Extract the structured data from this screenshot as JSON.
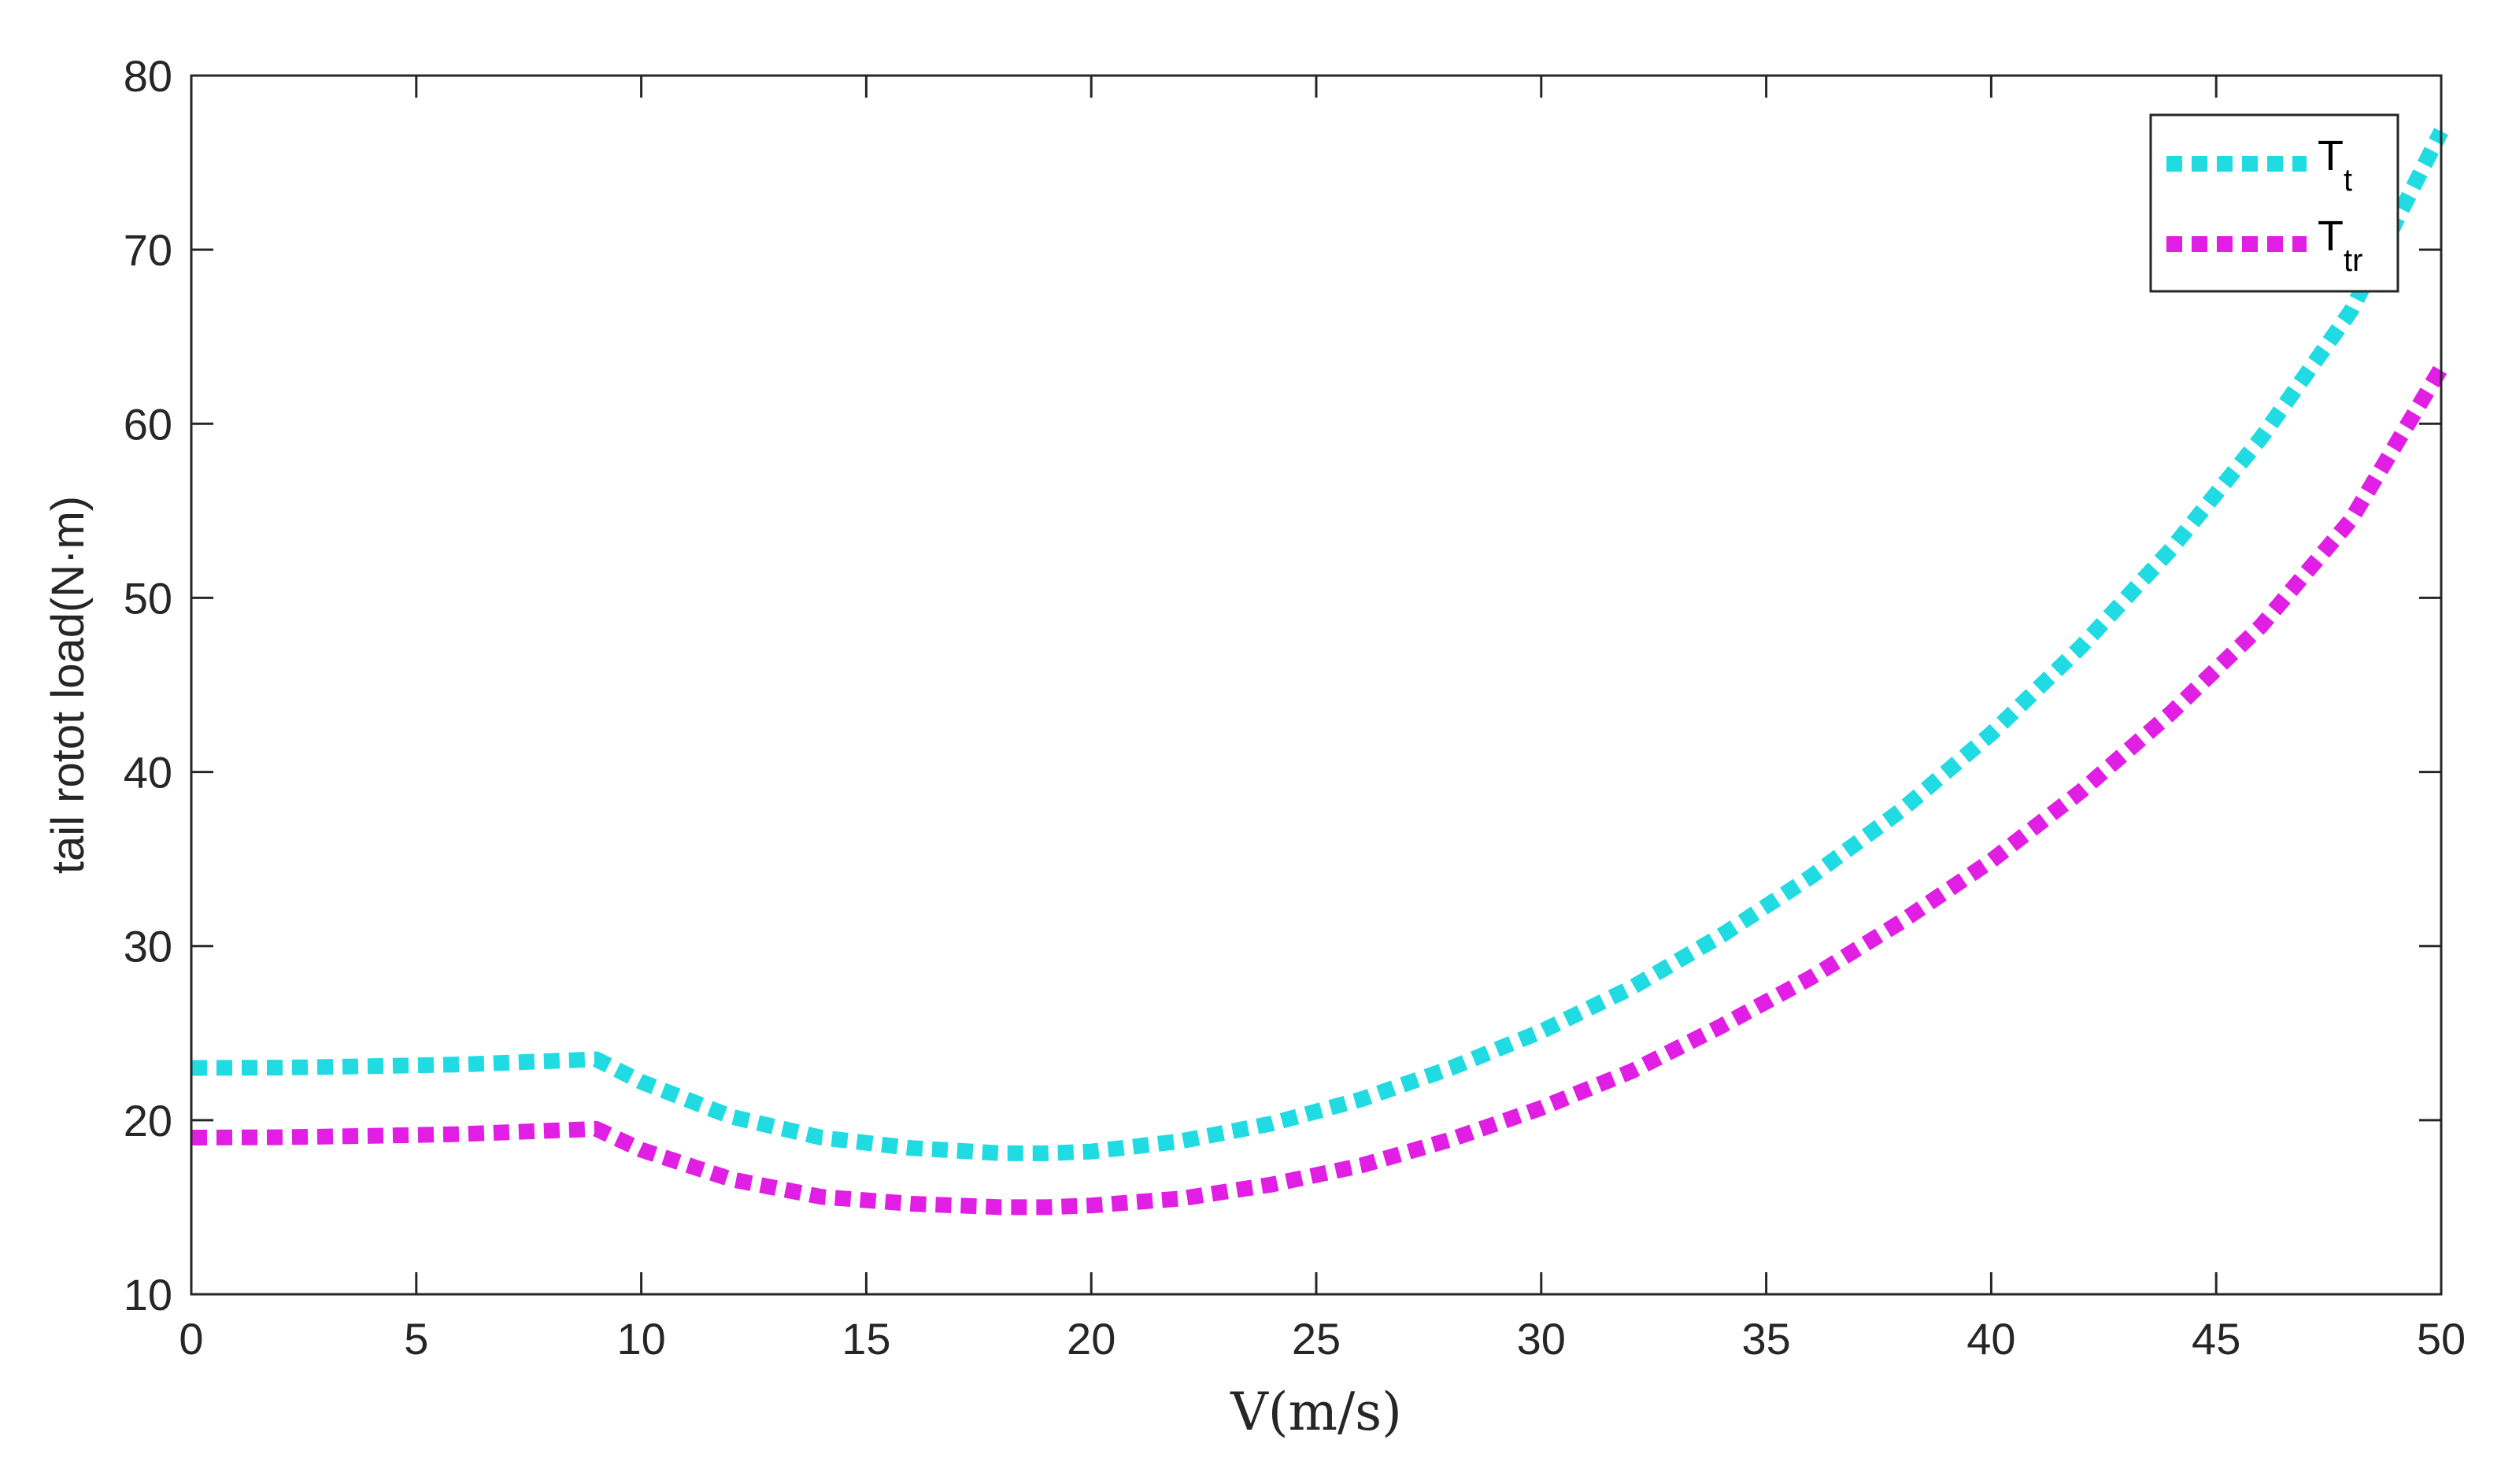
{
  "chart_data": {
    "type": "line",
    "title": "",
    "xlabel": "V(m/s)",
    "ylabel": "tail rotot load(N·m)",
    "xlim": [
      0,
      50
    ],
    "ylim": [
      10,
      80
    ],
    "xticks": [
      0,
      5,
      10,
      15,
      20,
      25,
      30,
      35,
      40,
      45,
      50
    ],
    "yticks": [
      10,
      20,
      30,
      40,
      50,
      60,
      70,
      80
    ],
    "grid": false,
    "legend_position": "top-right",
    "x": [
      0,
      2,
      4,
      6,
      8,
      9,
      10,
      12,
      14,
      16,
      18,
      19,
      20,
      22,
      24,
      26,
      28,
      30,
      32,
      34,
      36,
      38,
      40,
      42,
      44,
      46,
      48,
      50
    ],
    "series": [
      {
        "name": "T",
        "subscript": "t",
        "color": "#21dbe3",
        "style": "dotted",
        "values": [
          23,
          23.02,
          23.1,
          23.2,
          23.4,
          23.5,
          22.2,
          20.2,
          19,
          18.4,
          18.1,
          18.1,
          18.2,
          18.8,
          19.8,
          21.2,
          23,
          25.1,
          27.6,
          30.6,
          34,
          37.8,
          42.2,
          47.2,
          52.8,
          59.2,
          66.5,
          76.8
        ]
      },
      {
        "name": "T",
        "subscript": "tr",
        "color": "#e11ee3",
        "style": "dotted",
        "values": [
          19,
          19.02,
          19.1,
          19.2,
          19.4,
          19.5,
          18.3,
          16.6,
          15.6,
          15.2,
          15,
          15,
          15.1,
          15.5,
          16.3,
          17.4,
          18.9,
          20.7,
          22.8,
          25.4,
          28.2,
          31.4,
          34.9,
          38.9,
          43.4,
          48.4,
          54.5,
          63.2
        ]
      }
    ]
  }
}
